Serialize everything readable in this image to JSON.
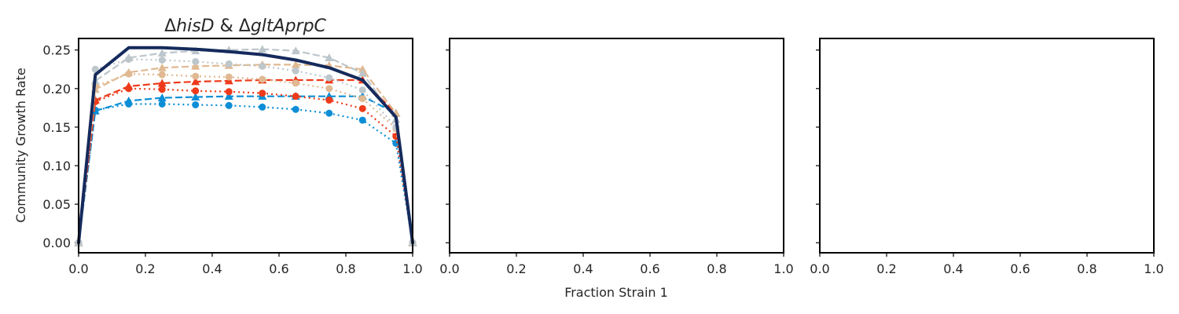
{
  "figure": {
    "ylabel": "Community Growth Rate",
    "xlabel": "Fraction Strain 1",
    "title_prefix": "Δ",
    "title_a": "hisD",
    "title_amp": " & Δ",
    "title_b": "gltAprpC"
  },
  "chart_data": [
    {
      "type": "line",
      "panel": 1,
      "title": "ΔhisD & ΔgltAprpC",
      "xlabel": "",
      "ylabel": "Community Growth Rate",
      "xlim": [
        0.0,
        1.0
      ],
      "ylim": [
        -0.013,
        0.265
      ],
      "xticks": [
        "0.0",
        "0.2",
        "0.4",
        "0.6",
        "0.8",
        "1.0"
      ],
      "yticks": [
        "0.00",
        "0.05",
        "0.10",
        "0.15",
        "0.20",
        "0.25"
      ],
      "x": [
        0.0,
        0.05,
        0.15,
        0.25,
        0.35,
        0.45,
        0.55,
        0.65,
        0.75,
        0.85,
        0.95,
        1.0
      ],
      "series": [
        {
          "name": "blue triangle dashed",
          "color": "#0c8ed6",
          "dash": "dashed",
          "marker": "triangle",
          "values": [
            0.0,
            0.171,
            0.184,
            0.188,
            0.189,
            0.19,
            0.19,
            0.19,
            0.19,
            0.19,
            0.168,
            0.0
          ]
        },
        {
          "name": "blue circle dotted",
          "color": "#0c8ed6",
          "dash": "dotted",
          "marker": "circle",
          "values": [
            0.0,
            0.172,
            0.18,
            0.18,
            0.179,
            0.178,
            0.176,
            0.173,
            0.168,
            0.159,
            0.129,
            0.0
          ]
        },
        {
          "name": "red triangle dashed",
          "color": "#ee3a1a",
          "dash": "dashed",
          "marker": "triangle",
          "values": [
            0.0,
            0.185,
            0.203,
            0.207,
            0.209,
            0.21,
            0.211,
            0.211,
            0.211,
            0.211,
            0.168,
            0.0
          ]
        },
        {
          "name": "red circle dotted",
          "color": "#ee3a1a",
          "dash": "dotted",
          "marker": "circle",
          "values": [
            0.0,
            0.183,
            0.2,
            0.199,
            0.197,
            0.196,
            0.194,
            0.19,
            0.185,
            0.174,
            0.138,
            0.0
          ]
        },
        {
          "name": "tan triangle dashed",
          "color": "#e0b992",
          "dash": "dashed",
          "marker": "triangle",
          "values": [
            0.0,
            0.199,
            0.221,
            0.227,
            0.229,
            0.23,
            0.231,
            0.231,
            0.23,
            0.225,
            0.168,
            0.0
          ]
        },
        {
          "name": "tan circle dotted",
          "color": "#e0b992",
          "dash": "dotted",
          "marker": "circle",
          "values": [
            0.0,
            0.203,
            0.219,
            0.218,
            0.216,
            0.215,
            0.212,
            0.207,
            0.2,
            0.187,
            0.148,
            0.0
          ]
        },
        {
          "name": "gray triangle dashed",
          "color": "#bcc6cb",
          "dash": "dashed",
          "marker": "triangle",
          "values": [
            0.0,
            0.21,
            0.24,
            0.246,
            0.249,
            0.25,
            0.251,
            0.249,
            0.24,
            0.22,
            0.16,
            0.0
          ]
        },
        {
          "name": "gray circle dotted",
          "color": "#bcc6cb",
          "dash": "dotted",
          "marker": "circle",
          "values": [
            0.0,
            0.225,
            0.238,
            0.237,
            0.235,
            0.232,
            0.229,
            0.223,
            0.214,
            0.198,
            0.15,
            0.0
          ]
        },
        {
          "name": "community solid",
          "color": "#152a5c",
          "dash": "solid",
          "marker": "none",
          "values": [
            0.0,
            0.218,
            0.253,
            0.253,
            0.251,
            0.248,
            0.244,
            0.237,
            0.227,
            0.211,
            0.163,
            0.0
          ]
        }
      ]
    },
    {
      "type": "line",
      "panel": 2,
      "title": "",
      "xlabel": "Fraction Strain 1",
      "xlim": [
        0.0,
        1.0
      ],
      "ylim": [
        -0.013,
        0.265
      ],
      "xticks": [
        "0.0",
        "0.2",
        "0.4",
        "0.6",
        "0.8",
        "1.0"
      ],
      "series": []
    },
    {
      "type": "line",
      "panel": 3,
      "title": "",
      "xlabel": "",
      "xlim": [
        0.0,
        1.0
      ],
      "ylim": [
        -0.013,
        0.265
      ],
      "xticks": [
        "0.0",
        "0.2",
        "0.4",
        "0.6",
        "0.8",
        "1.0"
      ],
      "series": []
    }
  ]
}
